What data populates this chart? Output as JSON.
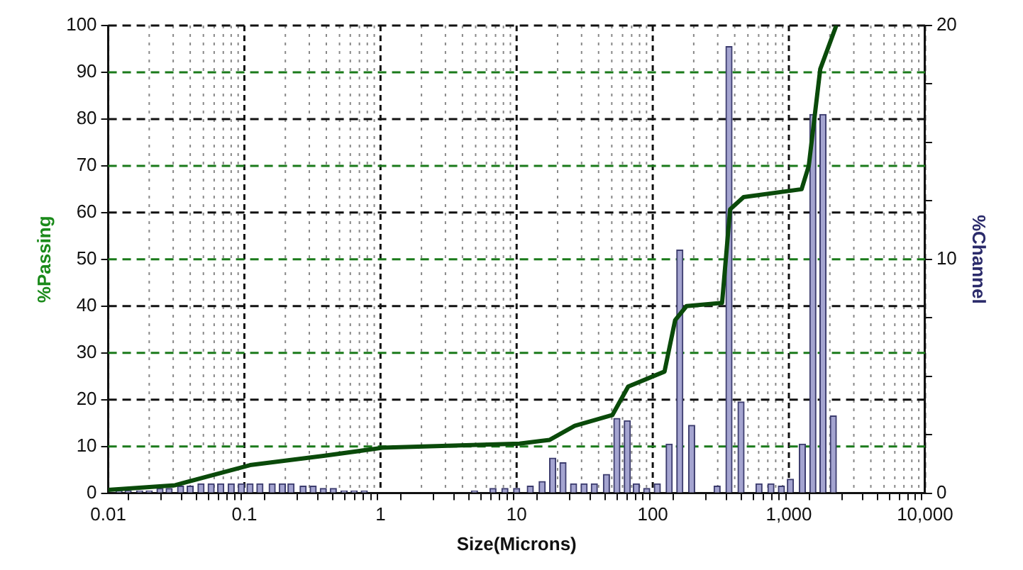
{
  "chart_data": {
    "type": "bar",
    "xlabel": "Size(Microns)",
    "ylabel": "%Passing",
    "y2label": "%Channel",
    "log": "x",
    "grid": true,
    "legend": false,
    "marker": "none",
    "xlim": [
      0.01,
      10000
    ],
    "xticks": [
      0.01,
      {
        "value": 0.02,
        "label": null
      },
      {
        "value": 0.03,
        "label": null
      },
      {
        "value": 0.04,
        "label": null
      },
      {
        "value": 0.05,
        "label": null
      },
      {
        "value": 0.06,
        "label": null
      },
      {
        "value": 0.07,
        "label": null
      },
      {
        "value": 0.08,
        "label": null
      },
      {
        "value": 0.09,
        "label": null
      },
      0.1,
      {
        "value": 0.2,
        "label": null
      },
      {
        "value": 0.3,
        "label": null
      },
      {
        "value": 0.4,
        "label": null
      },
      {
        "value": 0.5,
        "label": null
      },
      {
        "value": 0.6,
        "label": null
      },
      {
        "value": 0.7,
        "label": null
      },
      {
        "value": 0.8,
        "label": null
      },
      {
        "value": 0.9,
        "label": null
      },
      1,
      {
        "value": 2,
        "label": null
      },
      {
        "value": 3,
        "label": null
      },
      {
        "value": 4,
        "label": null
      },
      {
        "value": 5,
        "label": null
      },
      {
        "value": 6,
        "label": null
      },
      {
        "value": 7,
        "label": null
      },
      {
        "value": 8,
        "label": null
      },
      {
        "value": 9,
        "label": null
      },
      10,
      {
        "value": 20,
        "label": null
      },
      {
        "value": 30,
        "label": null
      },
      {
        "value": 40,
        "label": null
      },
      {
        "value": 50,
        "label": null
      },
      {
        "value": 60,
        "label": null
      },
      {
        "value": 70,
        "label": null
      },
      {
        "value": 80,
        "label": null
      },
      {
        "value": 90,
        "label": null
      },
      100,
      {
        "value": 200,
        "label": null
      },
      {
        "value": 300,
        "label": null
      },
      {
        "value": 400,
        "label": null
      },
      {
        "value": 500,
        "label": null
      },
      {
        "value": 600,
        "label": null
      },
      {
        "value": 700,
        "label": null
      },
      {
        "value": 800,
        "label": null
      },
      {
        "value": 900,
        "label": null
      },
      {
        "value": 1000,
        "label": "1,000"
      },
      {
        "value": 2000,
        "label": null
      },
      {
        "value": 3000,
        "label": null
      },
      {
        "value": 4000,
        "label": null
      },
      {
        "value": 5000,
        "label": null
      },
      {
        "value": 6000,
        "label": null
      },
      {
        "value": 7000,
        "label": null
      },
      {
        "value": 8000,
        "label": null
      },
      {
        "value": 9000,
        "label": null
      },
      {
        "value": 10000,
        "label": "10,000"
      }
    ],
    "ylim": [
      0,
      100
    ],
    "yticks": [
      0,
      10,
      20,
      30,
      40,
      50,
      60,
      70,
      80,
      90,
      100
    ],
    "y2lim": [
      0,
      20
    ],
    "y2ticks": [
      0,
      {
        "value": 2.5,
        "label": null
      },
      {
        "value": 5,
        "label": null
      },
      {
        "value": 7.5,
        "label": null
      },
      10,
      {
        "value": 12.5,
        "label": null
      },
      {
        "value": 15,
        "label": null
      },
      {
        "value": 17.5,
        "label": null
      },
      20
    ],
    "series": [
      {
        "axis": "y2",
        "color": "#a4a4d0",
        "x": [
          0.012,
          0.014,
          0.017,
          0.02,
          0.024,
          0.028,
          0.034,
          0.04,
          0.048,
          0.057,
          0.067,
          0.08,
          0.095,
          0.11,
          0.13,
          0.16,
          0.19,
          0.22,
          0.27,
          0.32,
          0.38,
          0.45,
          0.54,
          0.64,
          0.76,
          4.9,
          6.7,
          8.2,
          10,
          12.6,
          15.4,
          18.4,
          21.9,
          26.2,
          31.3,
          37.2,
          45.7,
          54.5,
          65,
          75.7,
          90.3,
          108,
          132,
          158,
          193,
          297,
          363,
          445,
          603,
          738,
          881,
          1026,
          1256,
          1500,
          1780,
          2120
        ],
        "values": [
          0.1,
          0.1,
          0.1,
          0.1,
          0.2,
          0.2,
          0.3,
          0.3,
          0.4,
          0.4,
          0.4,
          0.4,
          0.4,
          0.4,
          0.4,
          0.4,
          0.4,
          0.4,
          0.3,
          0.3,
          0.2,
          0.2,
          0.1,
          0.1,
          0.1,
          0.1,
          0.2,
          0.2,
          0.2,
          0.3,
          0.5,
          1.5,
          1.3,
          0.4,
          0.4,
          0.4,
          0.8,
          3.2,
          3.1,
          0.4,
          0.2,
          0.4,
          2.1,
          10.4,
          2.9,
          0.3,
          19.1,
          3.9,
          0.4,
          0.4,
          0.3,
          0.6,
          2.1,
          16.2,
          16.2,
          3.3
        ]
      },
      {
        "type": "line",
        "color": "#0a4a0a",
        "x": [
          0.01,
          0.031,
          0.11,
          0.39,
          1.03,
          10.5,
          17.5,
          26.7,
          50.5,
          66,
          122,
          146,
          177,
          323,
          370,
          465,
          1240,
          1400,
          1700,
          2230
        ],
        "values": [
          0.7,
          1.7,
          6,
          8,
          9.7,
          10.6,
          11.4,
          14.4,
          16.7,
          22.8,
          26,
          37,
          40,
          40.7,
          60.7,
          63.3,
          65,
          70,
          90.7,
          100
        ]
      }
    ]
  }
}
